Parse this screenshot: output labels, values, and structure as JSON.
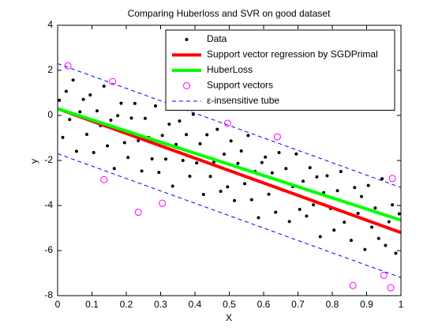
{
  "chart_data": {
    "type": "line",
    "title": "Comparing Huberloss and SVR on good dataset",
    "xlabel": "X",
    "ylabel": "y",
    "xlim": [
      0,
      1
    ],
    "ylim": [
      -8,
      4
    ],
    "xticks": [
      0,
      0.1,
      0.2,
      0.3,
      0.4,
      0.5,
      0.6,
      0.7,
      0.8,
      0.9,
      1
    ],
    "yticks": [
      -8,
      -6,
      -4,
      -2,
      0,
      2,
      4
    ],
    "grid": false,
    "legend": "top right",
    "series": [
      {
        "name": "Data",
        "color": "#000000",
        "style": "points",
        "x": [
          0.005,
          0.015,
          0.025,
          0.035,
          0.045,
          0.055,
          0.065,
          0.075,
          0.085,
          0.095,
          0.105,
          0.115,
          0.125,
          0.135,
          0.145,
          0.155,
          0.165,
          0.175,
          0.185,
          0.195,
          0.205,
          0.215,
          0.225,
          0.235,
          0.245,
          0.255,
          0.265,
          0.275,
          0.285,
          0.295,
          0.305,
          0.315,
          0.325,
          0.335,
          0.345,
          0.355,
          0.365,
          0.375,
          0.385,
          0.395,
          0.405,
          0.415,
          0.425,
          0.435,
          0.445,
          0.455,
          0.465,
          0.475,
          0.485,
          0.495,
          0.505,
          0.515,
          0.525,
          0.535,
          0.545,
          0.555,
          0.565,
          0.575,
          0.585,
          0.595,
          0.605,
          0.615,
          0.625,
          0.635,
          0.645,
          0.655,
          0.665,
          0.675,
          0.685,
          0.695,
          0.705,
          0.715,
          0.725,
          0.735,
          0.745,
          0.755,
          0.765,
          0.775,
          0.785,
          0.795,
          0.805,
          0.815,
          0.825,
          0.835,
          0.845,
          0.855,
          0.865,
          0.875,
          0.885,
          0.895,
          0.905,
          0.915,
          0.925,
          0.935,
          0.945,
          0.955,
          0.965,
          0.975,
          0.985,
          0.995
        ],
        "values": [
          0.67,
          -0.98,
          1.07,
          -0.18,
          1.57,
          -1.59,
          0.16,
          0.71,
          -0.84,
          0.91,
          -1.65,
          0.2,
          -0.45,
          1.3,
          -1.35,
          -0.21,
          -2.36,
          -0.01,
          0.54,
          -1.21,
          -1.87,
          -0.12,
          0.53,
          -1.12,
          -2.47,
          -0.13,
          -0.98,
          -1.93,
          0.42,
          -2.53,
          -0.89,
          -1.94,
          -0.39,
          -3.14,
          -1.29,
          -0.25,
          -2.0,
          -0.85,
          -2.7,
          0.05,
          -2.11,
          -1.26,
          -3.51,
          -0.86,
          -2.71,
          -2.07,
          -0.62,
          -3.37,
          -1.72,
          -3.17,
          -1.13,
          -3.78,
          -2.13,
          -1.58,
          -3.03,
          -0.89,
          -3.74,
          -2.49,
          -4.54,
          -2.09,
          -1.85,
          -3.5,
          -2.55,
          -4.3,
          -1.65,
          -3.31,
          -2.36,
          -4.71,
          -3.16,
          -1.71,
          -4.17,
          -2.92,
          -4.47,
          -2.32,
          -3.97,
          -2.73,
          -5.38,
          -3.43,
          -2.68,
          -4.13,
          -5.09,
          -3.34,
          -2.49,
          -4.74,
          -3.89,
          -5.55,
          -3.2,
          -4.35,
          -3.6,
          -5.95,
          -3.11,
          -4.96,
          -4.11,
          -5.46,
          -2.81,
          -5.77,
          -4.72,
          -3.97,
          -6.12,
          -4.37
        ]
      },
      {
        "name": "Support vector regression by SGDPrimal",
        "color": "#ff0000",
        "style": "line",
        "width": 4,
        "x": [
          0,
          1
        ],
        "values": [
          0.3,
          -5.2
        ]
      },
      {
        "name": "HuberLoss",
        "color": "#00ff00",
        "style": "line",
        "width": 4,
        "x": [
          0,
          1
        ],
        "values": [
          0.3,
          -4.65
        ]
      },
      {
        "name": "Support vectors",
        "color": "#ff00ff",
        "style": "circles",
        "x": [
          0.03,
          0.16,
          0.135,
          0.235,
          0.305,
          0.495,
          0.64,
          0.86,
          0.95,
          0.97,
          0.975
        ],
        "values": [
          2.2,
          1.5,
          -2.85,
          -4.3,
          -3.9,
          -0.35,
          -0.95,
          -7.55,
          -7.1,
          -7.65,
          -2.8
        ]
      },
      {
        "name": "ε-insensitive tube",
        "color": "#0000ff",
        "style": "dashed",
        "width": 1,
        "x": [
          0,
          1
        ],
        "values": [
          2.3,
          -3.2
        ],
        "lower": [
          -1.7,
          -7.2
        ]
      }
    ]
  }
}
